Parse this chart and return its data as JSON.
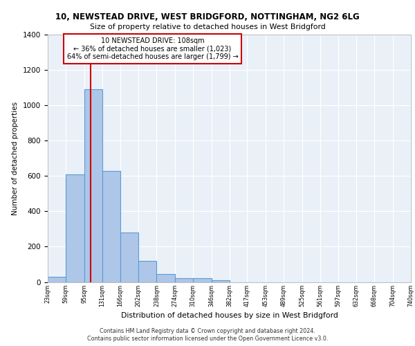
{
  "title1": "10, NEWSTEAD DRIVE, WEST BRIDGFORD, NOTTINGHAM, NG2 6LG",
  "title2": "Size of property relative to detached houses in West Bridgford",
  "xlabel": "Distribution of detached houses by size in West Bridgford",
  "ylabel": "Number of detached properties",
  "bin_labels": [
    "23sqm",
    "59sqm",
    "95sqm",
    "131sqm",
    "166sqm",
    "202sqm",
    "238sqm",
    "274sqm",
    "310sqm",
    "346sqm",
    "382sqm",
    "417sqm",
    "453sqm",
    "489sqm",
    "525sqm",
    "561sqm",
    "597sqm",
    "632sqm",
    "668sqm",
    "704sqm",
    "740sqm"
  ],
  "bar_heights": [
    30,
    610,
    1090,
    630,
    280,
    120,
    45,
    20,
    20,
    10,
    0,
    0,
    0,
    0,
    0,
    0,
    0,
    0,
    0,
    0
  ],
  "bar_color": "#aec6e8",
  "bar_edge_color": "#5b9bd5",
  "background_color": "#eaf0f8",
  "grid_color": "#ffffff",
  "red_line_x": 108,
  "annotation_line1": "10 NEWSTEAD DRIVE: 108sqm",
  "annotation_line2": "← 36% of detached houses are smaller (1,023)",
  "annotation_line3": "64% of semi-detached houses are larger (1,799) →",
  "annotation_box_color": "#ffffff",
  "annotation_box_edge": "#cc0000",
  "ylim": [
    0,
    1400
  ],
  "yticks": [
    0,
    200,
    400,
    600,
    800,
    1000,
    1200,
    1400
  ],
  "footer1": "Contains HM Land Registry data © Crown copyright and database right 2024.",
  "footer2": "Contains public sector information licensed under the Open Government Licence v3.0."
}
